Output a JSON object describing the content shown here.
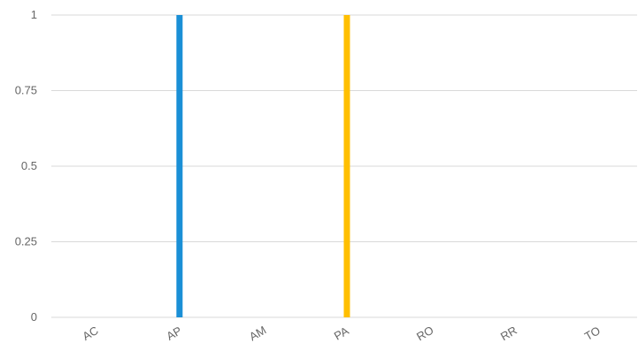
{
  "chart_data": {
    "type": "bar",
    "categories": [
      "AC",
      "AP",
      "AM",
      "PA",
      "RO",
      "RR",
      "TO"
    ],
    "values": [
      0,
      1,
      0,
      1,
      0,
      0,
      0
    ],
    "bar_colors": [
      "#1a8fd6",
      "#1a8fd6",
      "#1a8fd6",
      "#ffbf00",
      "#1a8fd6",
      "#1a8fd6",
      "#1a8fd6"
    ],
    "ylim": [
      0,
      1
    ],
    "yticks": [
      "0",
      "0.25",
      "0.5",
      "0.75",
      "1"
    ],
    "ytick_values": [
      0,
      0.25,
      0.5,
      0.75,
      1
    ],
    "grid": true,
    "title": "",
    "xlabel": "",
    "ylabel": ""
  }
}
